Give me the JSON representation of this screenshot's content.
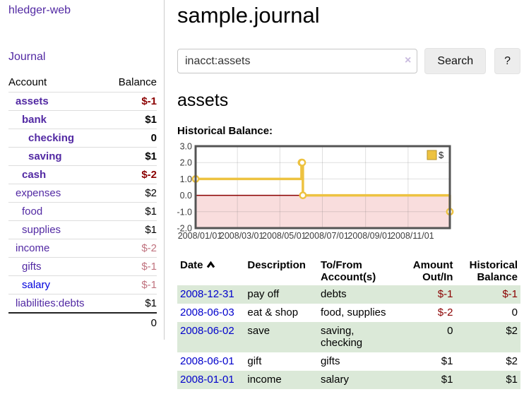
{
  "app": {
    "title": "hledger-web",
    "nav_journal": "Journal"
  },
  "sidebar": {
    "header": {
      "account": "Account",
      "balance": "Balance"
    },
    "rows": [
      {
        "name": "assets",
        "balance": "$-1",
        "indent": 0,
        "emph": true,
        "link": "purple",
        "bal_style": "neg"
      },
      {
        "name": "bank",
        "balance": "$1",
        "indent": 1,
        "emph": true,
        "link": "purple",
        "bal_style": ""
      },
      {
        "name": "checking",
        "balance": "0",
        "indent": 2,
        "emph": true,
        "link": "purple",
        "bal_style": ""
      },
      {
        "name": "saving",
        "balance": "$1",
        "indent": 2,
        "emph": true,
        "link": "purple",
        "bal_style": ""
      },
      {
        "name": "cash",
        "balance": "$-2",
        "indent": 1,
        "emph": true,
        "link": "purple",
        "bal_style": "neg"
      },
      {
        "name": "expenses",
        "balance": "$2",
        "indent": 0,
        "emph": false,
        "link": "purple",
        "bal_style": ""
      },
      {
        "name": "food",
        "balance": "$1",
        "indent": 1,
        "emph": false,
        "link": "purple",
        "bal_style": ""
      },
      {
        "name": "supplies",
        "balance": "$1",
        "indent": 1,
        "emph": false,
        "link": "purple",
        "bal_style": ""
      },
      {
        "name": "income",
        "balance": "$-2",
        "indent": 0,
        "emph": false,
        "link": "purple",
        "bal_style": "rose"
      },
      {
        "name": "gifts",
        "balance": "$-1",
        "indent": 1,
        "emph": false,
        "link": "purple",
        "bal_style": "rose"
      },
      {
        "name": "salary",
        "balance": "$-1",
        "indent": 1,
        "emph": false,
        "link": "blue",
        "bal_style": "rose"
      },
      {
        "name": "liabilities:debts",
        "balance": "$1",
        "indent": 0,
        "emph": false,
        "link": "purple",
        "bal_style": ""
      }
    ],
    "total": "0"
  },
  "main": {
    "title": "sample.journal",
    "search": {
      "value": "inacct:assets",
      "clear_icon": "×",
      "button": "Search",
      "help": "?"
    },
    "account_heading": "assets",
    "chart_label": "Historical Balance:"
  },
  "chart_data": {
    "type": "line",
    "step": true,
    "title": "Historical Balance",
    "legend": [
      {
        "label": "$",
        "color": "#edc240"
      }
    ],
    "legend_position": "top-right",
    "series": [
      {
        "name": "$",
        "color": "#edc240",
        "points": [
          [
            "2008-01-01",
            1
          ],
          [
            "2008-06-01",
            2
          ],
          [
            "2008-06-02",
            2
          ],
          [
            "2008-06-03",
            0
          ],
          [
            "2008-12-31",
            -1
          ]
        ]
      }
    ],
    "xlim": [
      "2008-01-01",
      "2008-12-31"
    ],
    "ylim": [
      -2,
      3
    ],
    "y_ticks": [
      3,
      2,
      1,
      0,
      -1,
      -2
    ],
    "x_ticks": [
      {
        "date": "2008-01-01",
        "label": "2008/01/01"
      },
      {
        "date": "2008-03-01",
        "label": "2008/03/01"
      },
      {
        "date": "2008-05-01",
        "label": "2008/05/01"
      },
      {
        "date": "2008-07-01",
        "label": "2008/07/01"
      },
      {
        "date": "2008-09-01",
        "label": "2008/09/01"
      },
      {
        "date": "2008-11-01",
        "label": "2008/11/01"
      }
    ],
    "grid": true,
    "negative_fill": "#f9dddd",
    "zero_line_color": "#8b0000",
    "border_color": "#545454"
  },
  "register": {
    "headers": [
      "Date",
      "Description",
      "To/From Account(s)",
      "Amount Out/In",
      "Historical Balance"
    ],
    "rows": [
      {
        "date": "2008-12-31",
        "description": "pay off",
        "accounts": "debts",
        "amount": "$-1",
        "balance": "$-1"
      },
      {
        "date": "2008-06-03",
        "description": "eat & shop",
        "accounts": "food, supplies",
        "amount": "$-2",
        "balance": "0"
      },
      {
        "date": "2008-06-02",
        "description": "save",
        "accounts": "saving, checking",
        "amount": "0",
        "balance": "$2"
      },
      {
        "date": "2008-06-01",
        "description": "gift",
        "accounts": "gifts",
        "amount": "$1",
        "balance": "$2"
      },
      {
        "date": "2008-01-01",
        "description": "income",
        "accounts": "salary",
        "amount": "$1",
        "balance": "$1"
      }
    ]
  }
}
